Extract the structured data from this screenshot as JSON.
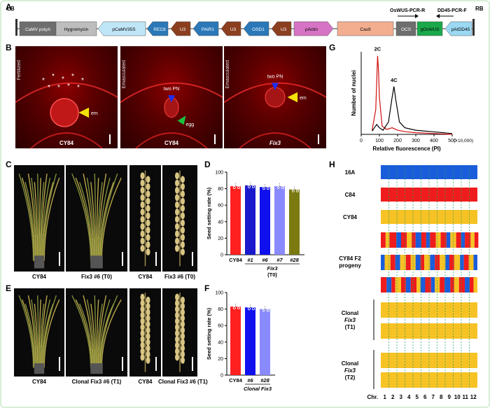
{
  "panels": {
    "A": "A",
    "B": "B",
    "C": "C",
    "D": "D",
    "E": "E",
    "F": "F",
    "G": "G",
    "H": "H"
  },
  "construct": {
    "lb": "LB",
    "rb": "RB",
    "elements": [
      "CaMV polyA",
      "Hygromycin",
      "pCaMV35S",
      "REC8",
      "U3",
      "PAIR1",
      "U3",
      "OSD1",
      "U3",
      "pActin",
      "Cas9",
      "OCS",
      "gOsWUS",
      "pAtDD45"
    ],
    "primer_r": "OsWUS-PCR-R",
    "primer_f": "DD45-PCR-F"
  },
  "micro": [
    {
      "side": "Fertilized",
      "cap": "CY84",
      "labels": [
        "em"
      ]
    },
    {
      "side": "Emasculated",
      "cap": "CY84",
      "labels": [
        "two PN",
        "egg"
      ]
    },
    {
      "side": "Emasculated",
      "cap": "Fix3",
      "labels": [
        "two PN",
        "em"
      ]
    }
  ],
  "plants_C": [
    "CY84",
    "Fix3 #6 (T0)",
    "CY84",
    "Fix3 #6 (T0)"
  ],
  "plants_E": [
    "CY84",
    "Clonal Fix3 #6 (T1)",
    "CY84",
    "Clonal Fix3 #6 (T1)"
  ],
  "chart_data": [
    {
      "type": "bar",
      "panel": "D",
      "ylabel": "Seed setting rate (%)",
      "ylim": [
        0,
        100
      ],
      "yticks": [
        "0",
        "20",
        "40",
        "60",
        "80",
        "100"
      ],
      "categories": [
        "CY84",
        "#1",
        "#6",
        "#7",
        "#28"
      ],
      "group_label": "Fix3",
      "group_sub": "(T0)",
      "values": [
        83,
        84,
        82,
        83,
        79
      ],
      "colors": [
        "#ff2020",
        "#1a1acc",
        "#1010ee",
        "#8a8aff",
        "#7a7a10"
      ]
    },
    {
      "type": "bar",
      "panel": "F",
      "ylabel": "Seed setting rate (%)",
      "ylim": [
        0,
        100
      ],
      "yticks": [
        "0",
        "20",
        "40",
        "60",
        "80",
        "100"
      ],
      "categories": [
        "CY84",
        "#6",
        "#28"
      ],
      "group_label": "Clonal Fix3",
      "values": [
        83,
        82,
        80
      ],
      "colors": [
        "#ff2020",
        "#1010ee",
        "#8a8aff"
      ]
    },
    {
      "type": "line",
      "panel": "G",
      "xlabel": "Relative fluorescence (PI)",
      "ylabel": "Number of nuclei",
      "xunit": "(×10,000)",
      "xticks": [
        "0",
        "100",
        "200",
        "300",
        "400",
        "500"
      ],
      "xlim": [
        0,
        500
      ],
      "peaks": [
        "2C",
        "4C"
      ],
      "series": [
        {
          "color": "#d01010",
          "points": [
            [
              60,
              5
            ],
            [
              80,
              30
            ],
            [
              90,
              95
            ],
            [
              95,
              78
            ],
            [
              100,
              45
            ],
            [
              115,
              10
            ],
            [
              140,
              6
            ],
            [
              170,
              8
            ],
            [
              200,
              5
            ],
            [
              250,
              3
            ],
            [
              300,
              2
            ],
            [
              400,
              1
            ],
            [
              500,
              0
            ]
          ]
        },
        {
          "color": "#000000",
          "points": [
            [
              60,
              4
            ],
            [
              85,
              12
            ],
            [
              100,
              8
            ],
            [
              120,
              5
            ],
            [
              150,
              15
            ],
            [
              170,
              45
            ],
            [
              180,
              58
            ],
            [
              190,
              42
            ],
            [
              210,
              15
            ],
            [
              240,
              8
            ],
            [
              300,
              5
            ],
            [
              400,
              3
            ],
            [
              500,
              1
            ]
          ]
        }
      ]
    }
  ],
  "genotype": {
    "rows": [
      "16A",
      "C84",
      "CY84",
      "CY84 F2 progeny",
      "Clonal Fix3 (T1)",
      "Clonal Fix3 (T2)"
    ],
    "chr_label": "Chr.",
    "chrs": [
      "1",
      "2",
      "3",
      "4",
      "5",
      "6",
      "7",
      "8",
      "9",
      "10",
      "11",
      "12"
    ],
    "colors": {
      "blue": "#1a5ddb",
      "red": "#ee1c1c",
      "yellow": "#f6c224"
    }
  }
}
